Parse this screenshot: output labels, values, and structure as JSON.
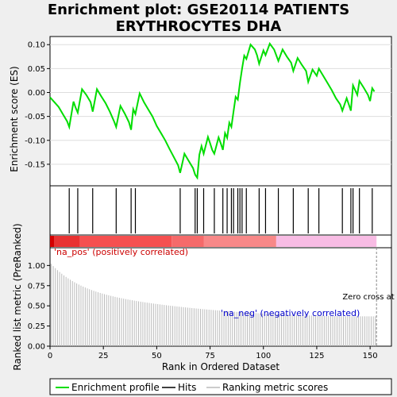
{
  "title_line1": "Enrichment plot: GSE20114 PATIENTS",
  "title_line2": "ERYTHROCYTES DHA",
  "chart_data": [
    {
      "type": "line",
      "panel": "enrichment",
      "ylabel": "Enrichment score (ES)",
      "xlim": [
        0,
        160
      ],
      "ylim": [
        -0.195,
        0.117
      ],
      "yticks": [
        0.1,
        0.05,
        0.0,
        -0.05,
        -0.1,
        -0.15
      ],
      "ytick_labels": [
        "0.10",
        "0.05",
        "0.00",
        "-0.05",
        "-0.10",
        "-0.15"
      ],
      "series": [
        {
          "name": "Enrichment profile",
          "color": "#00dd00",
          "x": [
            0,
            2,
            4,
            6,
            8,
            9,
            11,
            12,
            13,
            15,
            17,
            19,
            20,
            22,
            24,
            26,
            28,
            30,
            31,
            33,
            35,
            37,
            38,
            39,
            40,
            42,
            44,
            46,
            48,
            50,
            52,
            54,
            56,
            58,
            60,
            61,
            63,
            65,
            67,
            68,
            69,
            70,
            71,
            72,
            74,
            75,
            76,
            77,
            79,
            80,
            81,
            82,
            83,
            84,
            85,
            86,
            87,
            88,
            89,
            90,
            91,
            92,
            94,
            96,
            97,
            98,
            100,
            101,
            103,
            105,
            106,
            107,
            109,
            111,
            113,
            114,
            116,
            118,
            120,
            121,
            123,
            125,
            126,
            128,
            130,
            132,
            134,
            136,
            137,
            139,
            140,
            141,
            142,
            143,
            144,
            145,
            147,
            149,
            150,
            151,
            152
          ],
          "y": [
            -0.01,
            -0.02,
            -0.03,
            -0.045,
            -0.06,
            -0.072,
            -0.019,
            -0.032,
            -0.042,
            0.007,
            -0.005,
            -0.02,
            -0.04,
            0.007,
            -0.008,
            -0.022,
            -0.04,
            -0.06,
            -0.072,
            -0.028,
            -0.044,
            -0.062,
            -0.078,
            -0.035,
            -0.045,
            -0.002,
            -0.02,
            -0.035,
            -0.05,
            -0.07,
            -0.085,
            -0.1,
            -0.118,
            -0.135,
            -0.152,
            -0.168,
            -0.128,
            -0.143,
            -0.158,
            -0.172,
            -0.178,
            -0.13,
            -0.112,
            -0.128,
            -0.093,
            -0.106,
            -0.12,
            -0.128,
            -0.094,
            -0.106,
            -0.12,
            -0.085,
            -0.095,
            -0.063,
            -0.072,
            -0.04,
            -0.009,
            -0.015,
            0.02,
            0.05,
            0.077,
            0.07,
            0.1,
            0.09,
            0.078,
            0.06,
            0.088,
            0.078,
            0.102,
            0.09,
            0.078,
            0.066,
            0.09,
            0.075,
            0.062,
            0.045,
            0.072,
            0.058,
            0.045,
            0.022,
            0.048,
            0.035,
            0.05,
            0.035,
            0.02,
            0.005,
            -0.012,
            -0.025,
            -0.038,
            -0.012,
            -0.025,
            -0.038,
            0.015,
            0.005,
            -0.005,
            0.024,
            0.01,
            -0.005,
            -0.018,
            0.009,
            0.002
          ]
        }
      ]
    },
    {
      "type": "scatter",
      "panel": "hits",
      "name": "Hits",
      "xlim": [
        0,
        160
      ],
      "x": [
        9,
        13,
        20,
        31,
        38,
        40,
        61,
        68,
        69,
        72,
        77,
        81,
        83,
        85,
        86,
        88,
        89,
        90,
        92,
        98,
        101,
        107,
        114,
        121,
        126,
        137,
        141,
        142,
        145,
        151
      ]
    },
    {
      "type": "heatmap",
      "panel": "ranking-bar",
      "xlim": [
        0,
        160
      ],
      "segments": [
        {
          "start": 0,
          "end": 2,
          "color": "#d40000"
        },
        {
          "start": 2,
          "end": 14,
          "color": "#e83232"
        },
        {
          "start": 14,
          "end": 57,
          "color": "#f55050"
        },
        {
          "start": 57,
          "end": 72,
          "color": "#f56a6a"
        },
        {
          "start": 72,
          "end": 106,
          "color": "#f88888"
        },
        {
          "start": 106,
          "end": 153,
          "color": "#f8bce4"
        }
      ],
      "label_pos": "'na_pos' (positively correlated)",
      "label_neg": "'na_neg' (negatively correlated)",
      "zero_cross_label": "Zero cross at"
    },
    {
      "type": "bar",
      "panel": "ranked-metric",
      "name": "Ranking metric scores",
      "xlabel": "Rank in Ordered Dataset",
      "ylabel": "Ranked list metric (PreRanked)",
      "xlim": [
        0,
        160
      ],
      "ylim": [
        0.0,
        1.22
      ],
      "xticks": [
        0,
        25,
        50,
        75,
        100,
        125,
        150
      ],
      "yticks": [
        0.0,
        0.25,
        0.5,
        0.75,
        1.0
      ],
      "ytick_labels": [
        "0.00",
        "0.25",
        "0.50",
        "0.75",
        "1.00"
      ],
      "zero_cross": 153,
      "color": "#bbbbbb",
      "values_start": 1.02,
      "values_end": 0.37,
      "count": 153
    }
  ],
  "legend": {
    "items": [
      {
        "label": "Enrichment profile",
        "color": "#00dd00"
      },
      {
        "label": "Hits",
        "color": "#000000"
      },
      {
        "label": "Ranking metric scores",
        "color": "#bbbbbb"
      }
    ]
  }
}
